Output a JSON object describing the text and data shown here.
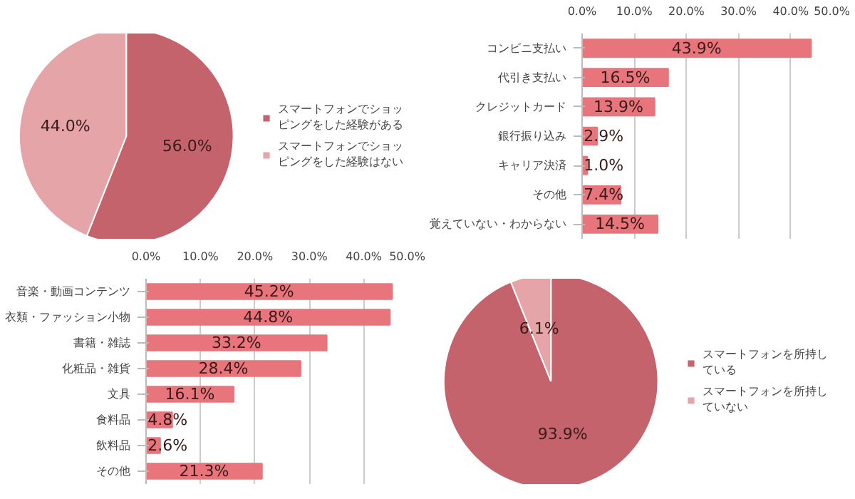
{
  "chart_data": [
    {
      "type": "pie",
      "categories": [
        "スマートフォンでショッピングをした経験がある",
        "スマートフォンでショッピングをした経験はない"
      ],
      "values": [
        56.0,
        44.0
      ],
      "value_labels": [
        "56.0%",
        "44.0%"
      ],
      "colors": [
        "#c4636b",
        "#e4a4a8"
      ],
      "legend": "right"
    },
    {
      "type": "bar",
      "orientation": "horizontal",
      "categories": [
        "コンビニ支払い",
        "代引き支払い",
        "クレジットカード",
        "銀行振り込み",
        "キャリア決済",
        "その他",
        "覚えていない・わからない"
      ],
      "values": [
        43.9,
        16.5,
        13.9,
        2.9,
        1.0,
        7.4,
        14.5
      ],
      "value_labels": [
        "43.9%",
        "16.5%",
        "13.9%",
        "2.9%",
        "1.0%",
        "7.4%",
        "14.5%"
      ],
      "color": "#e8757c",
      "xlim": [
        0,
        50
      ],
      "xticks": [
        {
          "value": 0,
          "label": "0.0%"
        },
        {
          "value": 10,
          "label": "10.0%"
        },
        {
          "value": 20,
          "label": "20.0%"
        },
        {
          "value": 30,
          "label": "30.0%"
        },
        {
          "value": 40,
          "label": "40.0%"
        },
        {
          "value": 50,
          "label": "50.0%"
        }
      ],
      "grid": "x"
    },
    {
      "type": "bar",
      "orientation": "horizontal",
      "categories": [
        "音楽・動画コンテンツ",
        "衣類・ファッション小物",
        "書籍・雑誌",
        "化粧品・雑貨",
        "文具",
        "食料品",
        "飲料品",
        "その他"
      ],
      "values": [
        45.2,
        44.8,
        33.2,
        28.4,
        16.1,
        4.8,
        2.6,
        21.3
      ],
      "value_labels": [
        "45.2%",
        "44.8%",
        "33.2%",
        "28.4%",
        "16.1%",
        "4.8%",
        "2.6%",
        "21.3%"
      ],
      "color": "#e8757c",
      "xlim": [
        0,
        50
      ],
      "xticks": [
        {
          "value": 0,
          "label": "0.0%"
        },
        {
          "value": 10,
          "label": "10.0%"
        },
        {
          "value": 20,
          "label": "20.0%"
        },
        {
          "value": 30,
          "label": "30.0%"
        },
        {
          "value": 40,
          "label": "40.0%"
        },
        {
          "value": 50,
          "label": "50.0%"
        }
      ],
      "grid": "x"
    },
    {
      "type": "pie",
      "categories": [
        "スマートフォンを所持している",
        "スマートフォンを所持していない"
      ],
      "values": [
        93.9,
        6.1
      ],
      "value_labels": [
        "93.9%",
        "6.1%"
      ],
      "colors": [
        "#c4636b",
        "#e4a4a8"
      ],
      "legend": "right"
    }
  ]
}
